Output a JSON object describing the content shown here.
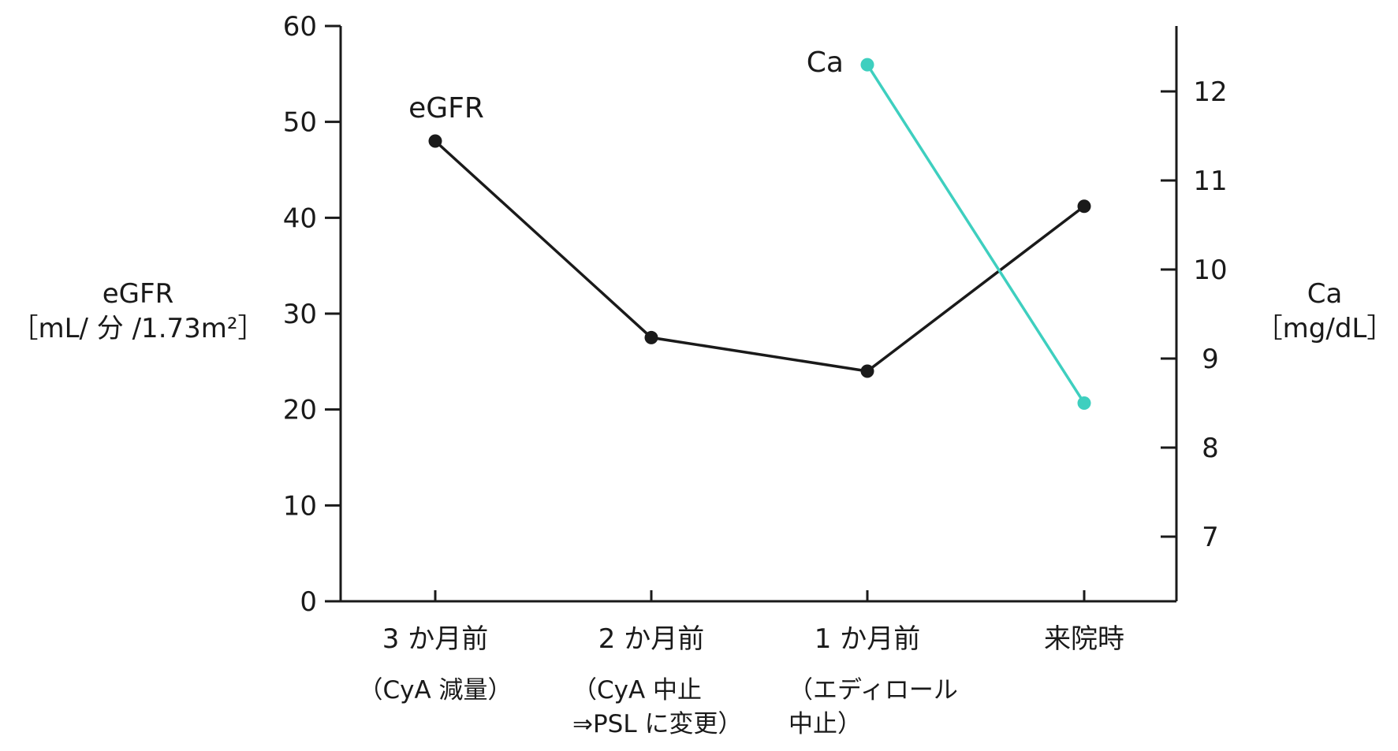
{
  "chart_data": {
    "type": "line",
    "categories": [
      "3 か月前",
      "2 か月前",
      "1 か月前",
      "来院時"
    ],
    "category_notes": [
      [
        "（CyA 減量）"
      ],
      [
        "（CyA 中止",
        "⇒PSL に変更）"
      ],
      [
        "（エディロール",
        "中止）"
      ],
      []
    ],
    "left_axis": {
      "title_lines": [
        "eGFR",
        "［mL/ 分 /1.73m²］"
      ],
      "ylim": [
        0,
        60
      ],
      "ticks": [
        0,
        10,
        20,
        30,
        40,
        50,
        60
      ],
      "tick_labels": [
        "0",
        "10",
        "20",
        "30",
        "40",
        "50",
        "60"
      ]
    },
    "right_axis": {
      "title_lines": [
        "Ca",
        "［mg/dL］"
      ],
      "ticks": [
        7,
        8,
        9,
        10,
        11,
        12
      ],
      "tick_labels": [
        "7",
        "8",
        "9",
        "10",
        "11",
        "12"
      ]
    },
    "series": [
      {
        "name": "eGFR",
        "axis": "left",
        "color": "#1a1a1a",
        "values": [
          48,
          27.5,
          24,
          41.2
        ]
      },
      {
        "name": "Ca",
        "axis": "right",
        "color": "#3ecfbf",
        "values": [
          null,
          null,
          12.3,
          8.5
        ]
      }
    ],
    "grid": false,
    "legend": "none (inline series labels)"
  }
}
